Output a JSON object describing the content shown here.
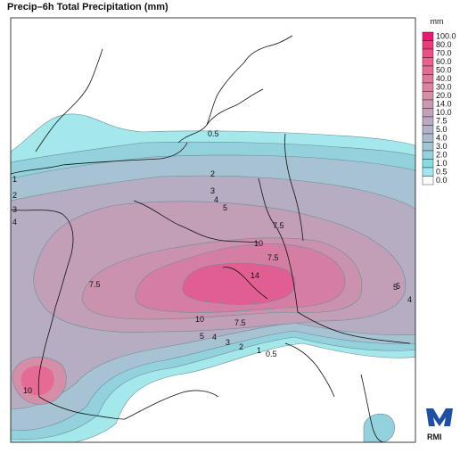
{
  "title": "Precip–6h Total Precipitation (mm)",
  "legend": {
    "unit": "mm",
    "levels": [
      "100.0",
      "80.0",
      "70.0",
      "60.0",
      "50.0",
      "40.0",
      "30.0",
      "20.0",
      "14.0",
      "10.0",
      "7.5",
      "5.0",
      "4.0",
      "3.0",
      "2.0",
      "1.0",
      "0.5",
      "0.0"
    ],
    "colors": [
      "#e8196f",
      "#eb3a7c",
      "#ec4e86",
      "#e95f8e",
      "#e56b95",
      "#e17699",
      "#dc82a0",
      "#d58da8",
      "#cc97b0",
      "#c4a0b8",
      "#bba9c0",
      "#b3b1c6",
      "#abbacc",
      "#a1c5d4",
      "#93d2dc",
      "#85dde3",
      "#9fe9ee",
      "#ffffff"
    ]
  },
  "contour_labels": [
    {
      "text": "0.5"
    },
    {
      "text": "1"
    },
    {
      "text": "2"
    },
    {
      "text": "2"
    },
    {
      "text": "3"
    },
    {
      "text": "3"
    },
    {
      "text": "4"
    },
    {
      "text": "4"
    },
    {
      "text": "5"
    },
    {
      "text": "5"
    },
    {
      "text": "7.5"
    },
    {
      "text": "7.5"
    },
    {
      "text": "10"
    },
    {
      "text": "14"
    },
    {
      "text": "7.5"
    },
    {
      "text": "10"
    },
    {
      "text": "7.5"
    },
    {
      "text": "5"
    },
    {
      "text": "4"
    },
    {
      "text": "3"
    },
    {
      "text": "2"
    },
    {
      "text": "1"
    },
    {
      "text": "0.5"
    },
    {
      "text": "5"
    },
    {
      "text": "4"
    },
    {
      "text": "10"
    }
  ],
  "logo": {
    "text": "RMI",
    "color": "#1f4fa5"
  }
}
